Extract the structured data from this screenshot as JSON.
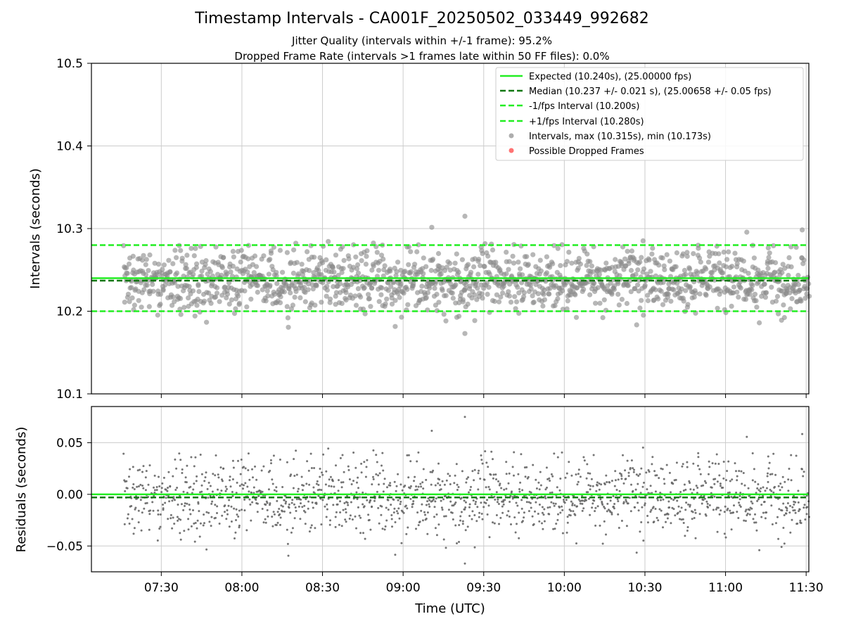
{
  "title": "Timestamp Intervals - CA001F_20250502_033449_992682",
  "subtitle_1": "Jitter Quality (intervals within +/-1 frame): 95.2%",
  "subtitle_2": "Dropped Frame Rate (intervals >1 frames late within 50 FF files): 0.0%",
  "colors": {
    "expected": "#22ee22",
    "median": "#117711",
    "interval_bound": "#22ee22",
    "points": "#8a8a8a",
    "dropped": "#ff5a5a",
    "grid": "#cccccc"
  },
  "chart_data": [
    {
      "type": "scatter",
      "panel": "top",
      "ylabel": "Intervals (seconds)",
      "ylim": [
        10.1,
        10.5
      ],
      "yticks": [
        "10.1",
        "10.2",
        "10.3",
        "10.4",
        "10.5"
      ],
      "x_range": [
        "07:04",
        "11:31"
      ],
      "grid": true,
      "legend_placement": "top-right",
      "legend": [
        {
          "label": "Expected (10.240s), (25.00000 fps)",
          "style": "solid-line"
        },
        {
          "label": "Median (10.237 +/- 0.021 s), (25.00658 +/- 0.05 fps)",
          "style": "dashed-dark"
        },
        {
          "label": "-1/fps Interval (10.200s)",
          "style": "dashed-light"
        },
        {
          "label": "+1/fps Interval (10.280s)",
          "style": "dashed-light"
        },
        {
          "label": "Intervals, max (10.315s), min (10.173s)",
          "style": "gray-dot"
        },
        {
          "label": "Possible Dropped Frames",
          "style": "red-dot"
        }
      ],
      "hlines": {
        "expected": 10.24,
        "median": 10.237,
        "lower": 10.2,
        "upper": 10.28
      },
      "series": {
        "x_start": "07:16",
        "x_end": "11:31",
        "count": 1500,
        "center": 10.237,
        "spread_sd": 0.021,
        "max": 10.315,
        "min": 10.173,
        "max_at": "09:23",
        "min_at": "09:23"
      }
    },
    {
      "type": "scatter",
      "panel": "bottom",
      "ylabel": "Residuals (seconds)",
      "xlabel": "Time (UTC)",
      "ylim": [
        -0.075,
        0.085
      ],
      "yticks": [
        "−0.05",
        "0.00",
        "0.05"
      ],
      "xticks": [
        "07:30",
        "08:00",
        "08:30",
        "09:00",
        "09:30",
        "10:00",
        "10:30",
        "11:00",
        "11:30"
      ],
      "hlines": {
        "expected": 0.0,
        "median": -0.003
      },
      "grid": true
    }
  ]
}
